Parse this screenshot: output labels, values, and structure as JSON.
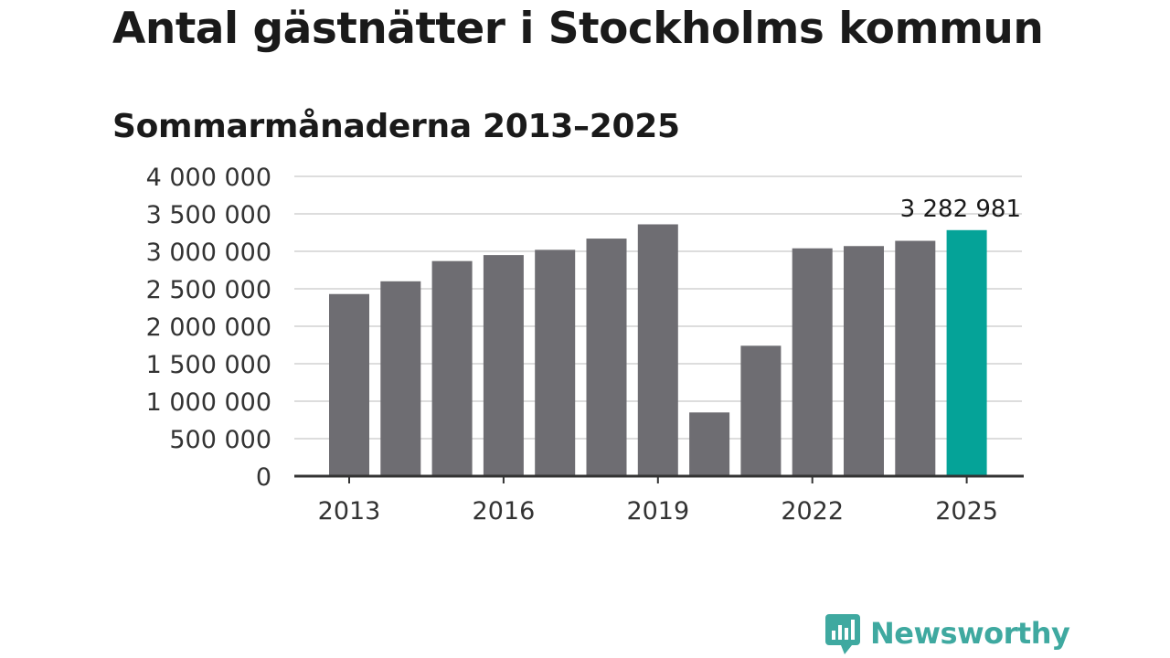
{
  "colors": {
    "bar": "#6e6d72",
    "highlight": "#05a398",
    "grid": "#dddddd",
    "axis": "#333333",
    "brand": "#3fa9a0"
  },
  "brand": {
    "name": "Newsworthy",
    "icon": "chart-speech-bubble-icon"
  },
  "chart_data": {
    "type": "bar",
    "title": "Antal gästnätter i Stockholms kommun",
    "subtitle": "Sommarmånaderna 2013–2025",
    "xlabel": "",
    "ylabel": "",
    "categories": [
      "2013",
      "2014",
      "2015",
      "2016",
      "2017",
      "2018",
      "2019",
      "2020",
      "2021",
      "2022",
      "2023",
      "2024",
      "2025"
    ],
    "x_tick_labels": [
      "2013",
      "2016",
      "2019",
      "2022",
      "2025"
    ],
    "values": [
      2430000,
      2600000,
      2870000,
      2950000,
      3020000,
      3170000,
      3360000,
      850000,
      1740000,
      3040000,
      3070000,
      3140000,
      3282981
    ],
    "highlight_category": "2025",
    "highlight_label": "3 282 981",
    "ylim": [
      0,
      4000000
    ],
    "y_ticks": [
      0,
      500000,
      1000000,
      1500000,
      2000000,
      2500000,
      3000000,
      3500000,
      4000000
    ],
    "y_tick_labels": [
      "0",
      "500 000",
      "1 000 000",
      "1 500 000",
      "2 000 000",
      "2 500 000",
      "3 000 000",
      "3 500 000",
      "4 000 000"
    ],
    "grid": true,
    "legend": "none"
  }
}
